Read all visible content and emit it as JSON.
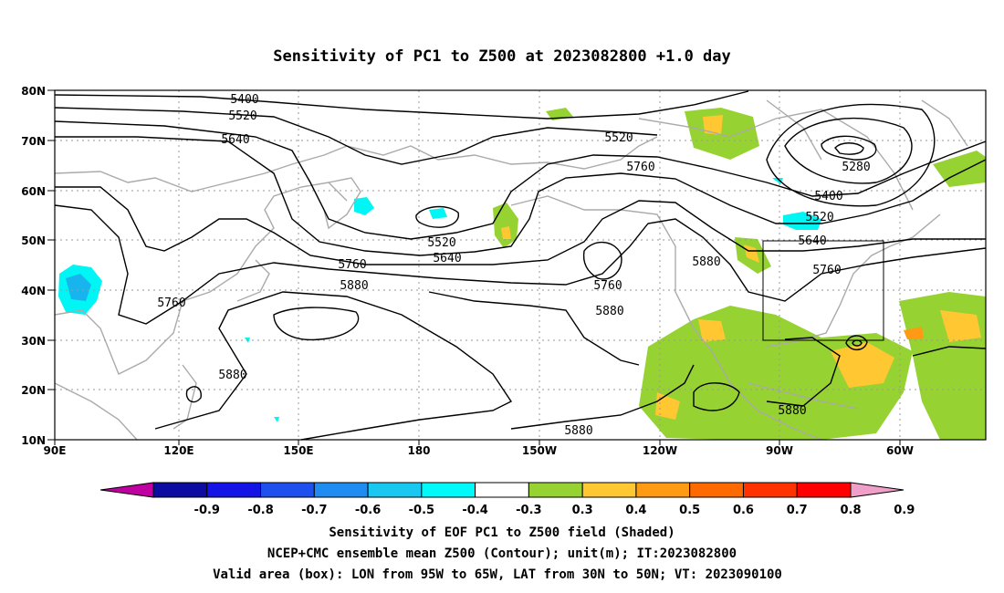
{
  "title": "Sensitivity of PC1 to Z500 at 2023082800 +1.0 day",
  "lat_labels": [
    "80N",
    "70N",
    "60N",
    "50N",
    "40N",
    "30N",
    "20N",
    "10N"
  ],
  "lon_labels": [
    "90E",
    "120E",
    "150E",
    "180",
    "150W",
    "120W",
    "90W",
    "60W"
  ],
  "contour_labels": [
    "5400",
    "5520",
    "5640",
    "5520",
    "5760",
    "5280",
    "5400",
    "5520",
    "5640",
    "5760",
    "5520",
    "5640",
    "5760",
    "5880",
    "5760",
    "5880",
    "5760",
    "5880",
    "5880",
    "5880",
    "5880"
  ],
  "colorbar": {
    "labels": [
      "-0.9",
      "-0.8",
      "-0.7",
      "-0.6",
      "-0.5",
      "-0.4",
      "-0.3",
      "0.3",
      "0.4",
      "0.5",
      "0.6",
      "0.7",
      "0.8",
      "0.9"
    ],
    "colors": [
      "#c000a0",
      "#0c0ca0",
      "#1414e6",
      "#1e50f0",
      "#1e8cf0",
      "#18c8f0",
      "#00fafa",
      "#ffffff",
      "#96d232",
      "#ffc832",
      "#ff9a14",
      "#ff6a00",
      "#ff3200",
      "#ff0000",
      "#f0a0c8"
    ]
  },
  "caption": [
    "Sensitivity of EOF PC1 to Z500 field (Shaded)",
    "NCEP+CMC ensemble mean Z500 (Contour); unit(m); IT:2023082800",
    "Valid area (box): LON from 95W to 65W, LAT from 30N to 50N; VT: 2023090100"
  ],
  "valid_box": {
    "lon_min": -95,
    "lon_max": -65,
    "lat_min": 30,
    "lat_max": 50
  }
}
